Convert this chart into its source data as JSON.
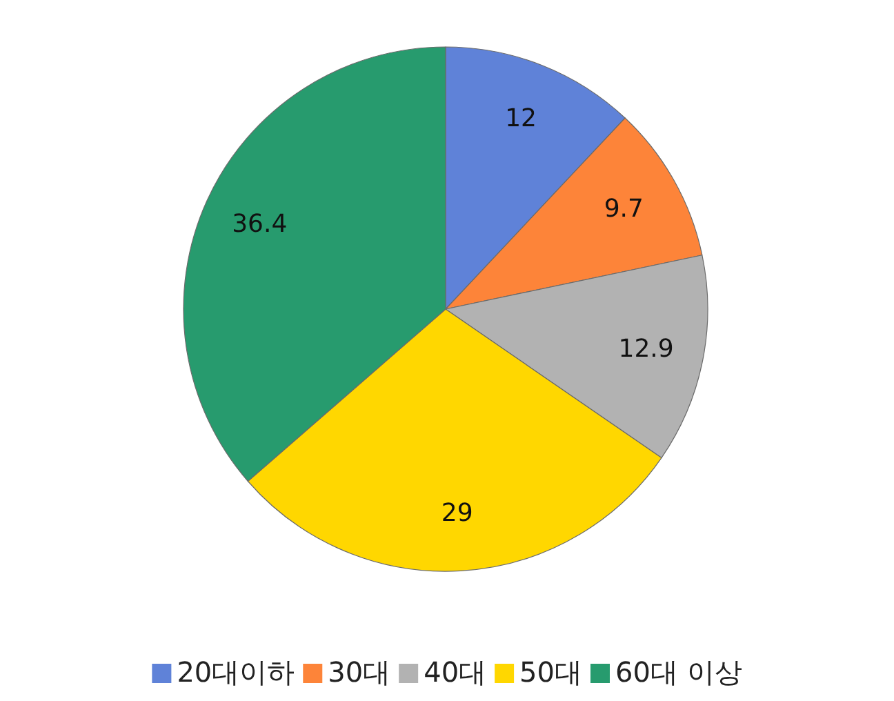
{
  "chart_data": {
    "type": "pie",
    "categories": [
      "20대이하",
      "30대",
      "40대",
      "50대",
      "60대 이상"
    ],
    "values": [
      12,
      9.7,
      12.9,
      29,
      36.4
    ],
    "colors": [
      "#5f82d8",
      "#fd8439",
      "#b2b2b2",
      "#ffd700",
      "#279b6e"
    ],
    "data_labels": true,
    "legend": "bottom"
  }
}
